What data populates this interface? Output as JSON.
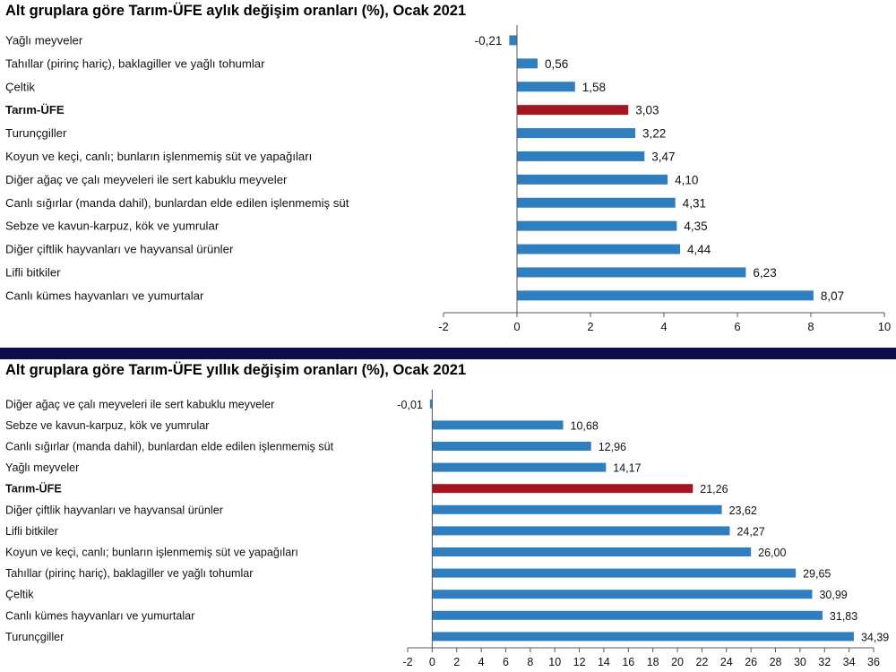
{
  "colors": {
    "bar": "#2f7ebf",
    "highlight": "#a31621",
    "divider": "#0d0d4d",
    "axis": "#555555"
  },
  "chart_data": [
    {
      "type": "bar",
      "orientation": "horizontal",
      "title": "Alt gruplara göre Tarım-ÜFE aylık değişim oranları (%), Ocak 2021",
      "highlight": "Tarım-ÜFE",
      "categories": [
        "Yağlı meyveler",
        "Tahıllar (pirinç hariç), baklagiller ve yağlı tohumlar",
        "Çeltik",
        "Tarım-ÜFE",
        "Turunçgiller",
        "Koyun ve keçi, canlı; bunların işlenmemiş süt ve yapağıları",
        "Diğer ağaç ve çalı meyveleri ile sert kabuklu meyveler",
        "Canlı sığırlar (manda dahil), bunlardan elde edilen işlenmemiş süt",
        "Sebze ve kavun-karpuz, kök ve yumrular",
        "Diğer çiftlik hayvanları ve hayvansal ürünler",
        "Lifli bitkiler",
        "Canlı kümes hayvanları ve yumurtalar"
      ],
      "values": [
        -0.21,
        0.56,
        1.58,
        3.03,
        3.22,
        3.47,
        4.1,
        4.31,
        4.35,
        4.44,
        6.23,
        8.07
      ],
      "value_labels": [
        "-0,21",
        "0,56",
        "1,58",
        "3,03",
        "3,22",
        "3,47",
        "4,10",
        "4,31",
        "4,35",
        "4,44",
        "6,23",
        "8,07"
      ],
      "xlim": [
        -2,
        10
      ],
      "xticks": [
        -2,
        0,
        2,
        4,
        6,
        8,
        10
      ],
      "xtick_labels": [
        "-2",
        "0",
        "2",
        "4",
        "6",
        "8",
        "10"
      ],
      "grid": false,
      "legend": "none"
    },
    {
      "type": "bar",
      "orientation": "horizontal",
      "title": "Alt gruplara göre Tarım-ÜFE yıllık değişim oranları (%), Ocak 2021",
      "highlight": "Tarım-ÜFE",
      "categories": [
        "Diğer ağaç ve çalı meyveleri ile sert kabuklu meyveler",
        "Sebze ve kavun-karpuz, kök ve yumrular",
        "Canlı sığırlar (manda dahil), bunlardan elde edilen işlenmemiş süt",
        "Yağlı meyveler",
        "Tarım-ÜFE",
        "Diğer çiftlik hayvanları ve hayvansal ürünler",
        "Lifli bitkiler",
        "Koyun ve keçi, canlı; bunların işlenmemiş süt ve yapağıları",
        "Tahıllar (pirinç hariç), baklagiller ve yağlı tohumlar",
        "Çeltik",
        "Canlı kümes hayvanları ve yumurtalar",
        "Turunçgiller"
      ],
      "values": [
        -0.01,
        10.68,
        12.96,
        14.17,
        21.26,
        23.62,
        24.27,
        26.0,
        29.65,
        30.99,
        31.83,
        34.39
      ],
      "value_labels": [
        "-0,01",
        "10,68",
        "12,96",
        "14,17",
        "21,26",
        "23,62",
        "24,27",
        "26,00",
        "29,65",
        "30,99",
        "31,83",
        "34,39"
      ],
      "xlim": [
        -2,
        36
      ],
      "xticks": [
        -2,
        0,
        2,
        4,
        6,
        8,
        10,
        12,
        14,
        16,
        18,
        20,
        22,
        24,
        26,
        28,
        30,
        32,
        34,
        36
      ],
      "xtick_labels": [
        "-2",
        "0",
        "2",
        "4",
        "6",
        "8",
        "10",
        "12",
        "14",
        "16",
        "18",
        "20",
        "22",
        "24",
        "26",
        "28",
        "30",
        "32",
        "34",
        "36"
      ],
      "grid": false,
      "legend": "none"
    }
  ]
}
